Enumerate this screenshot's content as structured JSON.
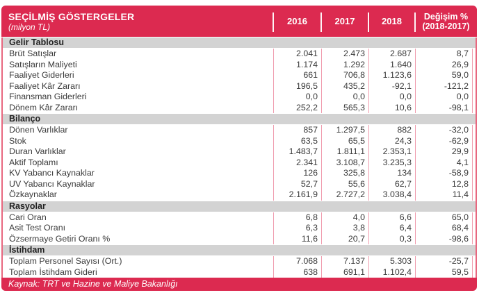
{
  "header": {
    "title": "SEÇİLMİŞ GÖSTERGELER",
    "subtitle": "(milyon TL)",
    "year_columns": [
      "2016",
      "2017",
      "2018"
    ],
    "change_column": {
      "line1": "Değişim %",
      "line2": "(2018-2017)"
    }
  },
  "sections": [
    {
      "title": "Gelir Tablosu",
      "rows": [
        {
          "label": "Brüt Satışlar",
          "values": [
            "2.041",
            "2.473",
            "2.687",
            "8,7"
          ]
        },
        {
          "label": "Satışların Maliyeti",
          "values": [
            "1.174",
            "1.292",
            "1.640",
            "26,9"
          ]
        },
        {
          "label": "Faaliyet Giderleri",
          "values": [
            "661",
            "706,8",
            "1.123,6",
            "59,0"
          ]
        },
        {
          "label": "Faaliyet Kâr Zararı",
          "values": [
            "196,5",
            "435,2",
            "-92,1",
            "-121,2"
          ]
        },
        {
          "label": "Finansman Giderleri",
          "values": [
            "0,0",
            "0,0",
            "0,0",
            "0,0"
          ]
        },
        {
          "label": "Dönem Kâr Zararı",
          "values": [
            "252,2",
            "565,3",
            "10,6",
            "-98,1"
          ]
        }
      ]
    },
    {
      "title": "Bilanço",
      "rows": [
        {
          "label": "Dönen Varlıklar",
          "values": [
            "857",
            "1.297,5",
            "882",
            "-32,0"
          ]
        },
        {
          "label": "Stok",
          "values": [
            "63,5",
            "65,5",
            "24,3",
            "-62,9"
          ]
        },
        {
          "label": "Duran Varlıklar",
          "values": [
            "1.483,7",
            "1.811,1",
            "2.353,1",
            "29,9"
          ]
        },
        {
          "label": "Aktif Toplamı",
          "values": [
            "2.341",
            "3.108,7",
            "3.235,3",
            "4,1"
          ]
        },
        {
          "label": "KV Yabancı Kaynaklar",
          "values": [
            "126",
            "325,8",
            "134",
            "-58,9"
          ]
        },
        {
          "label": "UV Yabancı Kaynaklar",
          "values": [
            "52,7",
            "55,6",
            "62,7",
            "12,8"
          ]
        },
        {
          "label": "Özkaynaklar",
          "values": [
            "2.161,9",
            "2.727,2",
            "3.038,4",
            "11,4"
          ]
        }
      ]
    },
    {
      "title": "Rasyolar",
      "rows": [
        {
          "label": "Cari Oran",
          "values": [
            "6,8",
            "4,0",
            "6,6",
            "65,0"
          ]
        },
        {
          "label": "Asit Test Oranı",
          "values": [
            "6,3",
            "3,8",
            "6,4",
            "68,4"
          ]
        },
        {
          "label": "Özsermaye Getiri Oranı %",
          "values": [
            "11,6",
            "20,7",
            "0,3",
            "-98,6"
          ]
        }
      ]
    },
    {
      "title": "İstihdam",
      "rows": [
        {
          "label": "Toplam Personel Sayısı (Ort.)",
          "values": [
            "7.068",
            "7.137",
            "5.303",
            "-25,7"
          ]
        },
        {
          "label": "Toplam İstihdam Gideri",
          "values": [
            "638",
            "691,1",
            "1.102,4",
            "59,5"
          ]
        }
      ]
    }
  ],
  "footer": {
    "source": "Kaynak: TRT ve Hazine ve Maliye Bakanlığı"
  },
  "colors": {
    "accent_red": "#dc2a50",
    "divider_pink": "#f09cae",
    "outer_border_pink": "#e8677f",
    "section_gray": "#d3d3d3",
    "body_text": "#3a3a3a"
  }
}
